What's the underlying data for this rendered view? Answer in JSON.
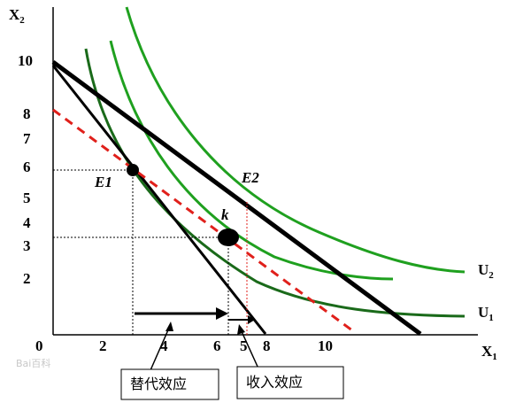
{
  "axes": {
    "y_title": "X",
    "y_title_sub": "2",
    "x_title": "X",
    "x_title_sub": "1",
    "origin": "0",
    "y_ticks": [
      "10",
      "8",
      "7",
      "6",
      "5",
      "4",
      "3",
      "2"
    ],
    "x_ticks": [
      "2",
      "4",
      "6",
      "5",
      "8",
      "10"
    ]
  },
  "curves": {
    "u2": {
      "label": "U",
      "sub": "2"
    },
    "u1": {
      "label": "U",
      "sub": "1"
    }
  },
  "points": {
    "e1": "E1",
    "e2": "E2",
    "k": "k"
  },
  "annotations": {
    "substitution": "替代效应",
    "income": "收入效应"
  },
  "watermark": "Bai百科",
  "colors": {
    "budget": "#000000",
    "compensated_budget": "#e0201b",
    "dark_green": "#1a6a1a",
    "green": "#1fa01f",
    "dotted_guides": "#000000",
    "income_guide": "#e0201b"
  }
}
